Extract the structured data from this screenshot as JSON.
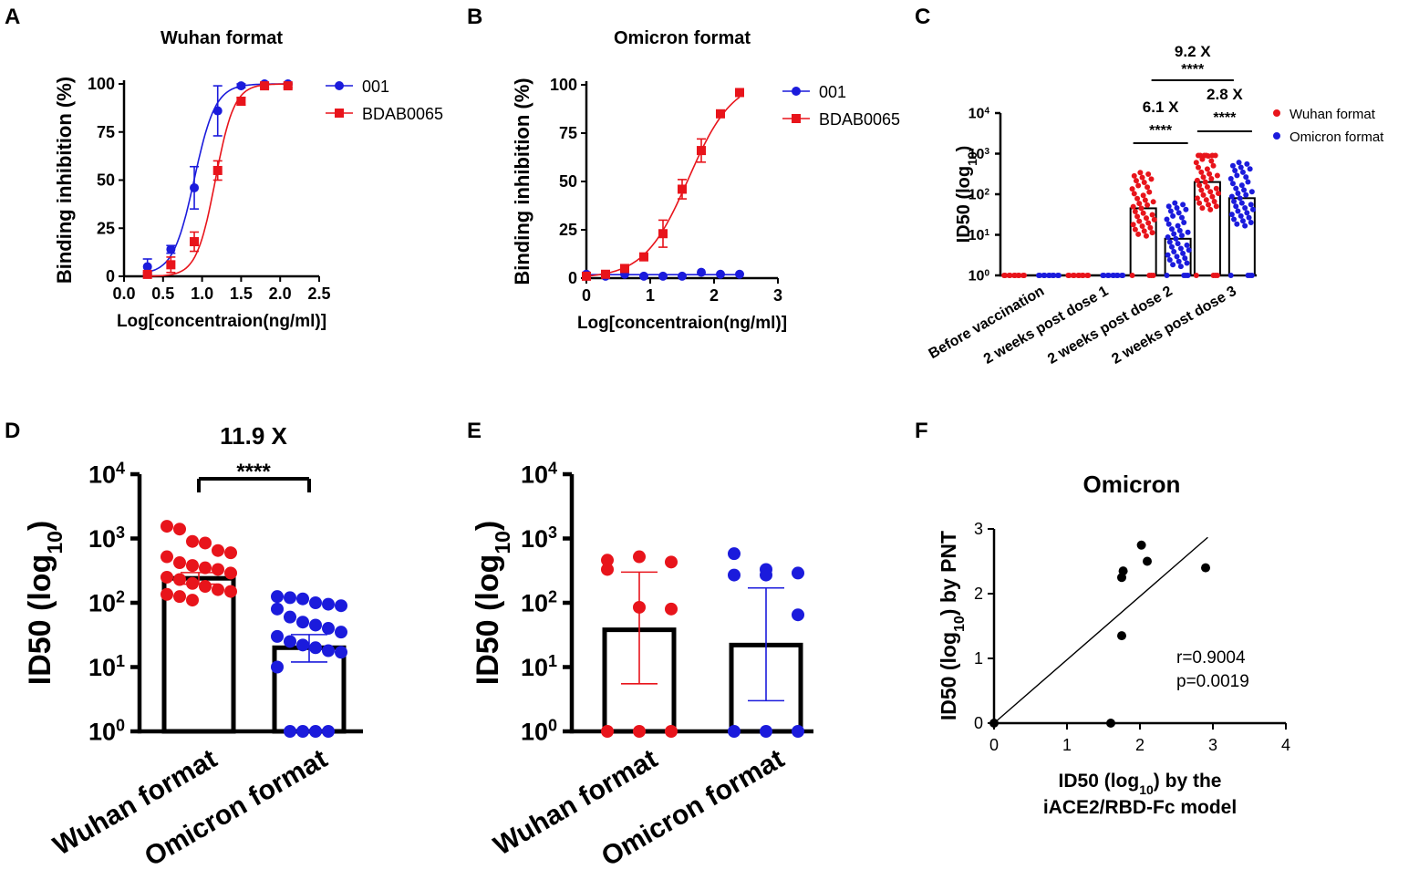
{
  "colors": {
    "red": "#e8141b",
    "blue": "#1b1bdc",
    "black": "#000000",
    "white": "#ffffff"
  },
  "chart_data": [
    {
      "id": "A",
      "panel_label": "A",
      "type": "line",
      "title": "Wuhan format",
      "xlabel": "Log[concentraion(ng/ml)]",
      "ylabel": "Binding inhibition (%)",
      "xlim": [
        0,
        2.5
      ],
      "ylim": [
        0,
        100
      ],
      "xticks": [
        "0.0",
        "0.5",
        "1.0",
        "1.5",
        "2.0",
        "2.5"
      ],
      "yticks": [
        "0",
        "25",
        "50",
        "75",
        "100"
      ],
      "legend_position": "right",
      "series": [
        {
          "name": "001",
          "color": "blue",
          "marker": "circle",
          "x": [
            0.3,
            0.6,
            0.9,
            1.2,
            1.5,
            1.8,
            2.1
          ],
          "y": [
            5,
            14,
            46,
            86,
            99,
            100,
            100
          ],
          "err": [
            4,
            2,
            11,
            13,
            1,
            0.5,
            0.5
          ],
          "curve": {
            "bottom": 1,
            "top": 100,
            "logec50": 0.9,
            "hill": 3.2
          }
        },
        {
          "name": "BDAB0065",
          "color": "red",
          "marker": "square",
          "x": [
            0.3,
            0.6,
            0.9,
            1.2,
            1.5,
            1.8,
            2.1
          ],
          "y": [
            1,
            6,
            18,
            55,
            91,
            99,
            99
          ],
          "err": [
            1,
            4,
            5,
            5,
            2,
            1,
            1
          ],
          "curve": {
            "bottom": 0,
            "top": 100,
            "logec50": 1.17,
            "hill": 3.6
          }
        }
      ]
    },
    {
      "id": "B",
      "panel_label": "B",
      "type": "line",
      "title": "Omicron format",
      "xlabel": "Log[concentraion(ng/ml)]",
      "ylabel": "Binding inhibition (%)",
      "xlim": [
        0,
        3
      ],
      "ylim": [
        0,
        100
      ],
      "xticks": [
        "0",
        "1",
        "2",
        "3"
      ],
      "yticks": [
        "0",
        "25",
        "50",
        "75",
        "100"
      ],
      "legend_position": "right",
      "series": [
        {
          "name": "001",
          "color": "blue",
          "marker": "circle",
          "x": [
            0,
            0.3,
            0.6,
            0.9,
            1.2,
            1.5,
            1.8,
            2.1,
            2.4
          ],
          "y": [
            2,
            1,
            2,
            1,
            1,
            1,
            3,
            2,
            2
          ],
          "err": [
            0,
            0,
            0,
            0,
            0,
            0,
            0,
            0,
            0
          ],
          "curve": {
            "flat": 1.8
          }
        },
        {
          "name": "BDAB0065",
          "color": "red",
          "marker": "square",
          "x": [
            0,
            0.3,
            0.6,
            0.9,
            1.2,
            1.5,
            1.8,
            2.1,
            2.4
          ],
          "y": [
            1,
            2,
            5,
            11,
            23,
            46,
            66,
            85,
            96
          ],
          "err": [
            0,
            0,
            1,
            1,
            7,
            5,
            6,
            1,
            1
          ],
          "curve": {
            "bottom": 0,
            "top": 103,
            "logec50": 1.6,
            "hill": 1.25
          }
        }
      ]
    },
    {
      "id": "C",
      "panel_label": "C",
      "type": "bar",
      "yscale": "log",
      "ylabel": "ID50 (log",
      "ylabel_sub": "10",
      "ylabel_close": ")",
      "ylim": [
        1,
        10000
      ],
      "ytick_base": "10",
      "ytick_exponents": [
        "0",
        "1",
        "2",
        "3",
        "4"
      ],
      "categories": [
        "Before vaccination",
        "2 weeks post dose 1",
        "2 weeks post dose 2",
        "2 weeks post dose 3"
      ],
      "legend_position": "top-right",
      "series": [
        {
          "name": "Wuhan format",
          "color": "red",
          "values": [
            1,
            1,
            45,
            200
          ]
        },
        {
          "name": "Omicron format",
          "color": "blue",
          "values": [
            1,
            1,
            8,
            80
          ]
        }
      ],
      "annotations": [
        {
          "group": 2,
          "fold": "6.1 X",
          "stars": "****"
        },
        {
          "group": 3,
          "fold": "2.8 X",
          "stars": "****"
        },
        {
          "span": [
            2,
            3
          ],
          "fold": "9.2 X",
          "stars": "****"
        }
      ]
    },
    {
      "id": "D",
      "panel_label": "D",
      "type": "bar",
      "yscale": "log",
      "ylabel": "ID50 (log",
      "ylabel_sub": "10",
      "ylabel_close": ")",
      "ylim": [
        1,
        10000
      ],
      "ytick_base": "10",
      "ytick_exponents": [
        "0",
        "1",
        "2",
        "3",
        "4"
      ],
      "categories": [
        "Wuhan format",
        "Omicron format"
      ],
      "values": [
        240,
        20
      ],
      "sem": [
        [
          195,
          295
        ],
        [
          12,
          32
        ]
      ],
      "colors": [
        "red",
        "blue"
      ],
      "points": [
        [
          1550,
          1400,
          900,
          850,
          650,
          600,
          520,
          420,
          380,
          350,
          330,
          290,
          250,
          230,
          200,
          180,
          160,
          150,
          135,
          125,
          110
        ],
        [
          125,
          120,
          115,
          100,
          95,
          90,
          80,
          60,
          50,
          45,
          40,
          35,
          30,
          25,
          22,
          20,
          18,
          17,
          10,
          1,
          1,
          1,
          1
        ]
      ],
      "annotation": {
        "fold": "11.9 X",
        "stars": "****"
      }
    },
    {
      "id": "E",
      "panel_label": "E",
      "type": "bar",
      "yscale": "log",
      "ylabel": "ID50 (log",
      "ylabel_sub": "10",
      "ylabel_close": ")",
      "ylim": [
        1,
        10000
      ],
      "ytick_base": "10",
      "ytick_exponents": [
        "0",
        "1",
        "2",
        "3",
        "4"
      ],
      "categories": [
        "Wuhan format",
        "Omicron format"
      ],
      "values": [
        38,
        22
      ],
      "sd": [
        [
          5.5,
          300
        ],
        [
          3,
          170
        ]
      ],
      "colors": [
        "red",
        "blue"
      ],
      "points": [
        [
          460,
          520,
          430,
          330,
          85,
          80,
          1,
          1,
          1
        ],
        [
          580,
          330,
          290,
          270,
          270,
          65,
          1,
          1,
          1
        ]
      ]
    },
    {
      "id": "F",
      "panel_label": "F",
      "type": "scatter",
      "title": "Omicron",
      "xlabel": "ID50 (log",
      "xlabel_sub": "10",
      "xlabel_close": ") by the",
      "xlabel_line2": "iACE2/RBD-Fc model",
      "ylabel": "ID50 (log",
      "ylabel_sub": "10",
      "ylabel_close": ") by PNT",
      "xlim": [
        0,
        4
      ],
      "ylim": [
        0,
        3
      ],
      "xticks": [
        "0",
        "1",
        "2",
        "3",
        "4"
      ],
      "yticks": [
        "0",
        "1",
        "2",
        "3"
      ],
      "points": [
        {
          "x": 0,
          "y": 0
        },
        {
          "x": 1.6,
          "y": 0
        },
        {
          "x": 1.75,
          "y": 1.35
        },
        {
          "x": 1.75,
          "y": 2.25
        },
        {
          "x": 1.77,
          "y": 2.35
        },
        {
          "x": 2.02,
          "y": 2.75
        },
        {
          "x": 2.1,
          "y": 2.5
        },
        {
          "x": 2.9,
          "y": 2.4
        }
      ],
      "fit_line": {
        "x": [
          0,
          2.93
        ],
        "y": [
          0,
          2.87
        ]
      },
      "stats": [
        "r=0.9004",
        "p=0.0019"
      ]
    }
  ]
}
